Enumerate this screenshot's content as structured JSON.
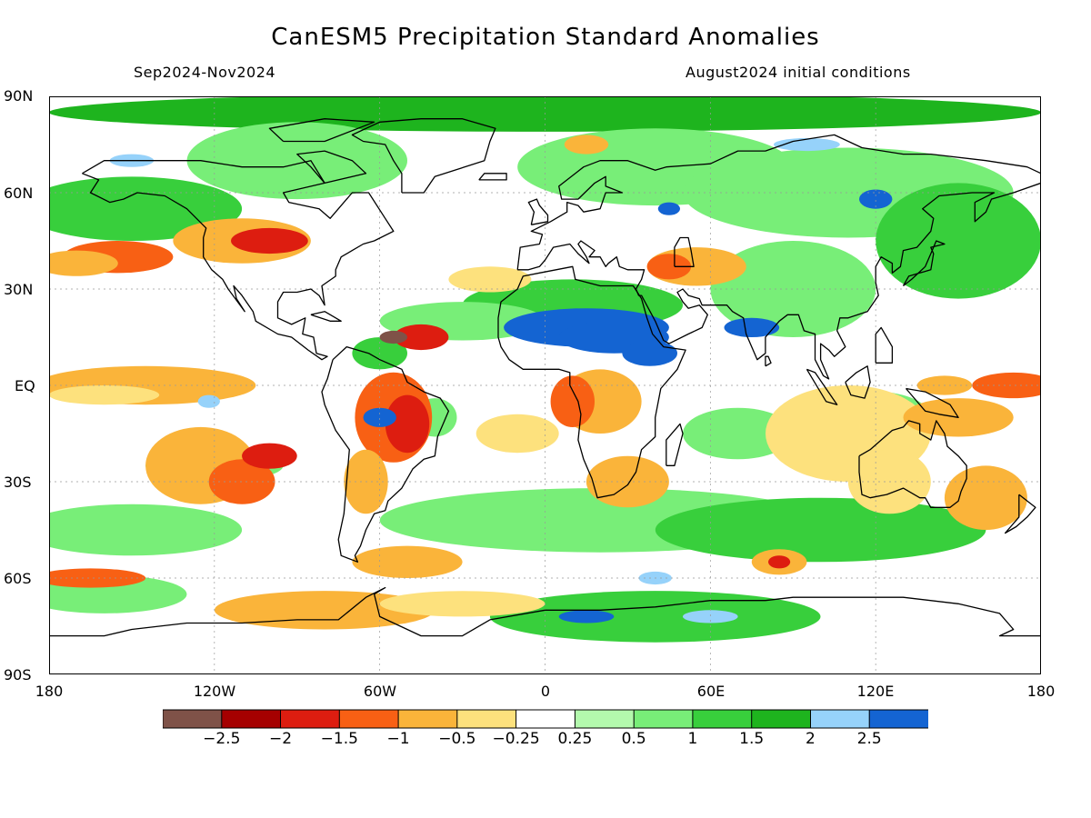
{
  "title": "CanESM5 Precipitation Standard Anomalies",
  "subtitle_left": "Sep2024-Nov2024",
  "subtitle_right": "August2024 initial conditions",
  "axes": {
    "lat_labels": [
      "90N",
      "60N",
      "30N",
      "EQ",
      "30S",
      "60S",
      "90S"
    ],
    "lon_labels": [
      "180",
      "120W",
      "60W",
      "0",
      "60E",
      "120E",
      "180"
    ]
  },
  "colorbar": {
    "labels": [
      "−2.5",
      "−2",
      "−1.5",
      "−1",
      "−0.5",
      "−0.25",
      "0.25",
      "0.5",
      "1",
      "1.5",
      "2",
      "2.5"
    ],
    "colors": [
      "#7f5248",
      "#a50000",
      "#dd1d10",
      "#f86014",
      "#fab43a",
      "#fde17d",
      "#ffffff",
      "#b3f9ad",
      "#78ee78",
      "#38cf3c",
      "#1eb41e",
      "#96d2fa",
      "#1464d2"
    ]
  },
  "map_colors": {
    "ocean_base": "#ffffff",
    "coast": "#000000",
    "grid": "#999999"
  }
}
